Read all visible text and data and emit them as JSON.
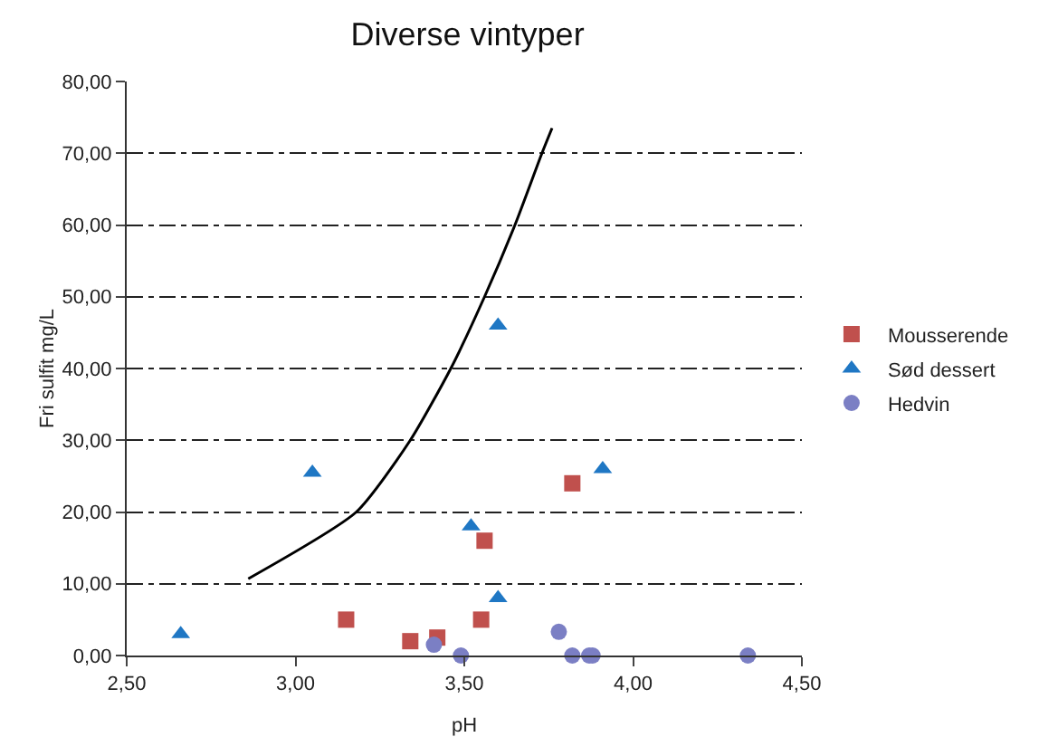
{
  "chart_data": {
    "type": "scatter",
    "title": "Diverse vintyper",
    "xlabel": "pH",
    "ylabel": "Fri sulfit mg/L",
    "xlim": [
      2.5,
      4.5
    ],
    "xticks": [
      {
        "value": 2.5,
        "label": "2,50"
      },
      {
        "value": 3,
        "label": "3,00"
      },
      {
        "value": 3.5,
        "label": "3,50"
      },
      {
        "value": 4,
        "label": "4,00"
      },
      {
        "value": 4.5,
        "label": "4,50"
      }
    ],
    "ylim": [
      0,
      80
    ],
    "yticks": [
      {
        "value": 0,
        "label": "0,00"
      },
      {
        "value": 10,
        "label": "10,00"
      },
      {
        "value": 20,
        "label": "20,00"
      },
      {
        "value": 30,
        "label": "30,00"
      },
      {
        "value": 40,
        "label": "40,00"
      },
      {
        "value": 50,
        "label": "50,00"
      },
      {
        "value": 60,
        "label": "60,00"
      },
      {
        "value": 70,
        "label": "70,00"
      },
      {
        "value": 80,
        "label": "80,00"
      }
    ],
    "grid": "y",
    "legend": "right",
    "series": [
      {
        "name": "Mousserende",
        "color": "#c0504d",
        "marker": "square",
        "x": [
          3.15,
          3.34,
          3.42,
          3.55,
          3.56,
          3.82
        ],
        "values": [
          5,
          2,
          2.5,
          5,
          16,
          24
        ]
      },
      {
        "name": "Sød dessert",
        "color": "#1f77c4",
        "marker": "triangle",
        "x": [
          2.66,
          3.05,
          3.52,
          3.6,
          3.6,
          3.91
        ],
        "values": [
          3,
          25.5,
          18,
          46,
          8,
          26
        ]
      },
      {
        "name": "Hedvin",
        "color": "#7b7fc4",
        "marker": "circle",
        "x": [
          3.41,
          3.49,
          3.78,
          3.82,
          3.87,
          3.88,
          4.34
        ],
        "values": [
          1.5,
          0,
          3.3,
          0,
          0,
          0,
          0
        ]
      },
      {
        "type": "line",
        "color": "#000000",
        "marker": "none",
        "line_style": "solid",
        "x": [
          2.86,
          3.18,
          3.34,
          3.46,
          3.56,
          3.65,
          3.73,
          3.76
        ],
        "values": [
          10.7,
          20,
          30,
          40,
          50,
          60,
          70,
          73.5
        ]
      }
    ]
  }
}
